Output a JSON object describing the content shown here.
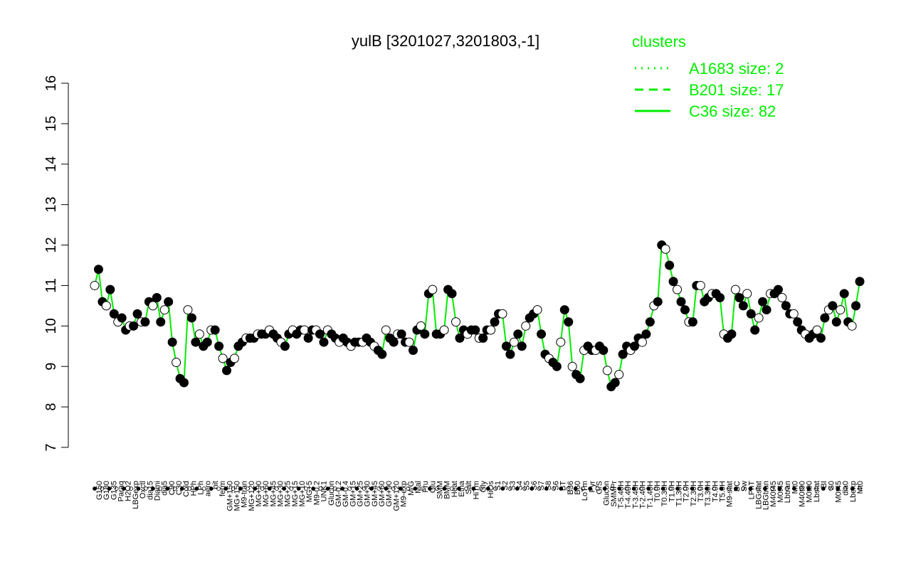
{
  "chart_data": {
    "type": "line",
    "title": "yulB [3201027,3201803,-1]",
    "xlabel": "",
    "ylabel": "",
    "ylim": [
      7,
      16
    ],
    "yticks": [
      7,
      8,
      9,
      10,
      11,
      12,
      13,
      14,
      15,
      16
    ],
    "grid": false,
    "legend_position": "top-right",
    "legend": {
      "title": "clusters",
      "color": "#00ee00",
      "entries": [
        {
          "label": "A1683 size: 2",
          "style": "dotted"
        },
        {
          "label": "B201 size: 17",
          "style": "dashed"
        },
        {
          "label": "C36 size: 82",
          "style": "solid"
        }
      ]
    },
    "line_color": "#00ee00",
    "x_tick_labels": [
      "G150",
      "G180",
      "G135",
      "Paraq",
      "H2O2",
      "LBGexp",
      "Oxctl",
      "dia15",
      "Diami",
      "dia5",
      "C90",
      "C30",
      "Cold",
      "HPh",
      "LPh",
      "aero",
      "nit",
      "ferm",
      "GM+150",
      "MG+150",
      "M9-tran",
      "MG+120",
      "MG+90",
      "MG+60",
      "MG+45",
      "MG+30",
      "MG+25",
      "MG+15",
      "MG+10",
      "MG+5",
      "M9-0.2",
      "UNK1",
      "Glucon",
      "GM-0.2",
      "GM-0.4",
      "GM+15",
      "GM+25",
      "GM+30",
      "GM+45",
      "GM+60",
      "GM+90",
      "GM+120",
      "M9-exp",
      "M/G",
      "Mal",
      "Fru",
      "Glu",
      "SMM",
      "BMM",
      "Heat",
      "Etha",
      "Salt",
      "HiTm",
      "Gly",
      "HiOs",
      "S1",
      "S2",
      "S3",
      "S4",
      "S5",
      "S6",
      "S7",
      "S8",
      "S6",
      "BT",
      "B36",
      "B60",
      "LoTm",
      "Pyr",
      "G/S",
      "Glucon",
      "SMMPr",
      "T-5.40H",
      "T-4.40H",
      "T-3.40H",
      "T-2.40H",
      "T-1.40H",
      "T0.0H",
      "T0.30H",
      "T1.0H",
      "T1.30H",
      "T2.0H",
      "T2.30H",
      "T3.0H",
      "T3.30H",
      "T4.0H",
      "T5.0H",
      "M9-stat",
      "BC",
      "Sw",
      "LPhT",
      "LBGstat",
      "LBGtran",
      "M40t45",
      "M0t45",
      "Lbtran",
      "Mt0",
      "M40t90",
      "M0t90",
      "Lbstat",
      "BI",
      "S0",
      "M0t45",
      "dia0",
      "Lbexp",
      "Mt0"
    ],
    "x_visible_labels": [
      "G150",
      "G180",
      "G135",
      "Paraq",
      "H2O2",
      "LBGexp",
      "Oxctl",
      "dia15",
      "Diami",
      "dia5",
      "C90",
      "C30",
      "Cold",
      "HPh",
      "LPh",
      "aero",
      "nit",
      "ferm",
      "GM+150",
      "MG+150",
      "M9-tran",
      "MG+120",
      "MG+90",
      "MG+60",
      "MG+45",
      "MG+30",
      "MG+25",
      "MG+15",
      "MG+10",
      "MG+5",
      "M9-0.2",
      "UNK1",
      "Glucon",
      "GM-0.2",
      "GM-0.4",
      "GM+15",
      "GM+25",
      "GM+30",
      "GM+45",
      "GM+60",
      "GM+90",
      "GM+120",
      "M9-exp",
      "M/G",
      "Mal",
      "Fru",
      "Glu",
      "SMM",
      "BMM",
      "Heat",
      "Etha",
      "Salt",
      "HiTm",
      "Gly",
      "HiOs",
      "S1",
      "S2",
      "S3",
      "S4",
      "S5",
      "S6",
      "S7",
      "S8",
      "S6",
      "BT",
      "B36",
      "B60",
      "LoTm",
      "Pyr",
      "G/S",
      "Glucon",
      "SMMPr",
      "T-5.40H",
      "T-4.40H",
      "T-3.40H",
      "T-2.40H",
      "T-1.40H",
      "T0.0H",
      "T0.30H",
      "T1.0H",
      "T1.30H",
      "T2.0H",
      "T2.30H",
      "T3.0H",
      "T3.30H",
      "T4.0H",
      "T5.0H",
      "M9-stat",
      "BC",
      "Sw",
      "LPhT",
      "LBGstat",
      "LBGtran",
      "M40t45",
      "M0t45",
      "Lbtran",
      "Mt0",
      "M40t90",
      "M0t90",
      "Lbstat",
      "BI",
      "S0",
      "M0t45",
      "dia0",
      "Lbexp",
      "Mt0"
    ],
    "series": [
      {
        "values": [
          11.0,
          11.4,
          10.6,
          10.5,
          10.9,
          10.3,
          10.1,
          10.2,
          9.9,
          10.0,
          10.0,
          10.3,
          10.1,
          10.1,
          10.6,
          10.5,
          10.7,
          10.1,
          10.4,
          10.6,
          9.6,
          9.1,
          8.7,
          8.6,
          10.4,
          10.2,
          9.6,
          9.8,
          9.5,
          9.6,
          9.9,
          9.9,
          9.5,
          9.2,
          8.9,
          9.1,
          9.2,
          9.5,
          9.6,
          9.7,
          9.7,
          9.7,
          9.8,
          9.8,
          9.8,
          9.9,
          9.8,
          9.7,
          9.6,
          9.5,
          9.8,
          9.9,
          9.8,
          9.9,
          9.9,
          9.7,
          9.9,
          9.9,
          9.8,
          9.6,
          9.9,
          9.8,
          9.7,
          9.6,
          9.7,
          9.6,
          9.5,
          9.6,
          9.6,
          9.6,
          9.7,
          9.6,
          9.5,
          9.4,
          9.3,
          9.9,
          9.7,
          9.6,
          9.8,
          9.8,
          9.6,
          9.6,
          9.4,
          9.9,
          10.0,
          9.8,
          10.8,
          10.9,
          9.8,
          9.8,
          9.9,
          10.9,
          10.8,
          10.1,
          9.7,
          9.9,
          9.8,
          9.9,
          9.9,
          9.7,
          9.7,
          9.9,
          9.9,
          10.1,
          10.3,
          10.3,
          9.5,
          9.3,
          9.6,
          9.8,
          9.5,
          10.0,
          10.2,
          10.3,
          10.4,
          9.8,
          9.3,
          9.2,
          9.1,
          9.0,
          9.6,
          10.4,
          10.1,
          9.0,
          8.8,
          8.7,
          9.4,
          9.5,
          9.4,
          9.4,
          9.5,
          9.4,
          8.9,
          8.5,
          8.6,
          8.8,
          9.3,
          9.5,
          9.4,
          9.5,
          9.7,
          9.6,
          9.8,
          10.1,
          10.5,
          10.6,
          12.0,
          11.9,
          11.5,
          11.1,
          10.9,
          10.6,
          10.4,
          10.1,
          10.1,
          11.0,
          11.0,
          10.6,
          10.7,
          10.8,
          10.8,
          10.7,
          9.8,
          9.7,
          9.8,
          10.9,
          10.7,
          10.5,
          10.8,
          10.3,
          9.9,
          10.2,
          10.6,
          10.4,
          10.8,
          10.8,
          10.9,
          10.7,
          10.5,
          10.3,
          10.3,
          10.1,
          9.9,
          9.8,
          9.7,
          9.8,
          9.9,
          9.7,
          10.2,
          10.4,
          10.5,
          10.1,
          10.4,
          10.8,
          10.1,
          10.0,
          10.5,
          11.1
        ]
      }
    ]
  }
}
